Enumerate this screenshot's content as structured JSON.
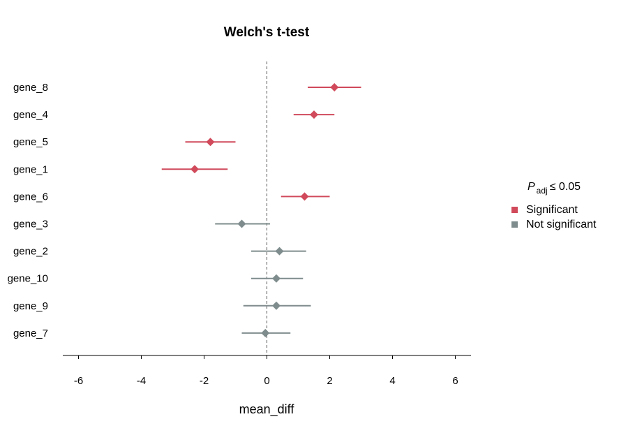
{
  "chart_data": {
    "type": "scatter",
    "title": "Welch's t-test",
    "xlabel": "mean_diff",
    "ylabel": "",
    "xlim": [
      -6.5,
      6.5
    ],
    "xticks": [
      -6,
      -4,
      -2,
      0,
      2,
      4,
      6
    ],
    "reference_line": 0,
    "categories": [
      "gene_8",
      "gene_4",
      "gene_5",
      "gene_1",
      "gene_6",
      "gene_3",
      "gene_2",
      "gene_10",
      "gene_9",
      "gene_7"
    ],
    "points": [
      {
        "gene": "gene_8",
        "mean_diff": 2.15,
        "ci_low": 1.3,
        "ci_high": 3.0,
        "group": "Significant"
      },
      {
        "gene": "gene_4",
        "mean_diff": 1.5,
        "ci_low": 0.85,
        "ci_high": 2.15,
        "group": "Significant"
      },
      {
        "gene": "gene_5",
        "mean_diff": -1.8,
        "ci_low": -2.6,
        "ci_high": -1.0,
        "group": "Significant"
      },
      {
        "gene": "gene_1",
        "mean_diff": -2.3,
        "ci_low": -3.35,
        "ci_high": -1.25,
        "group": "Significant"
      },
      {
        "gene": "gene_6",
        "mean_diff": 1.2,
        "ci_low": 0.45,
        "ci_high": 2.0,
        "group": "Significant"
      },
      {
        "gene": "gene_3",
        "mean_diff": -0.8,
        "ci_low": -1.65,
        "ci_high": 0.1,
        "group": "Not significant"
      },
      {
        "gene": "gene_2",
        "mean_diff": 0.4,
        "ci_low": -0.5,
        "ci_high": 1.25,
        "group": "Not significant"
      },
      {
        "gene": "gene_10",
        "mean_diff": 0.3,
        "ci_low": -0.5,
        "ci_high": 1.15,
        "group": "Not significant"
      },
      {
        "gene": "gene_9",
        "mean_diff": 0.3,
        "ci_low": -0.75,
        "ci_high": 1.4,
        "group": "Not significant"
      },
      {
        "gene": "gene_7",
        "mean_diff": -0.05,
        "ci_low": -0.8,
        "ci_high": 0.75,
        "group": "Not significant"
      }
    ],
    "legend": {
      "title_main": "P",
      "title_sub": "adj",
      "title_rest": "≤ 0.05",
      "placement": "right",
      "entries": [
        {
          "label": "Significant",
          "color": "#d04a5b"
        },
        {
          "label": "Not significant",
          "color": "#7f8c8d"
        }
      ]
    },
    "colors": {
      "Significant": "#d04a5b",
      "Not significant": "#7f8c8d"
    },
    "grid": false
  }
}
